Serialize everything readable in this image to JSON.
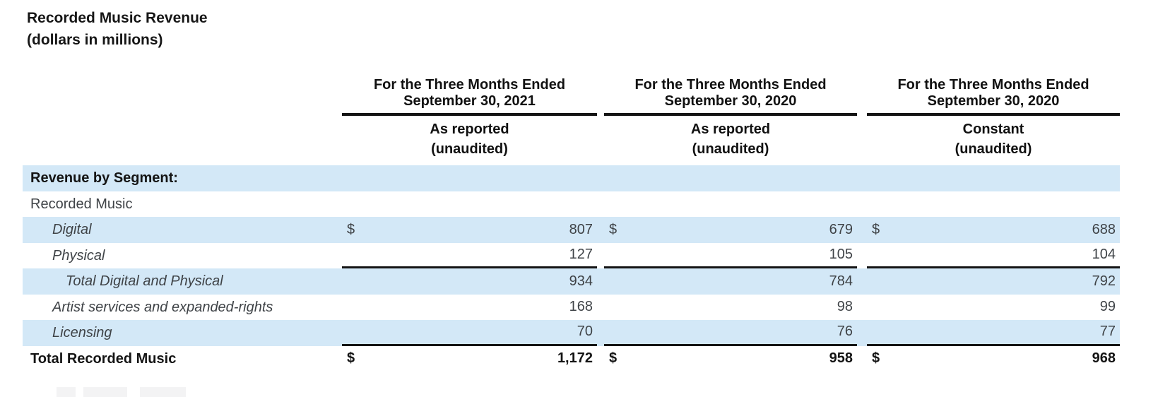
{
  "title": "Recorded Music Revenue",
  "subtitle": "(dollars in millions)",
  "table": {
    "column_groups": [
      {
        "period": "For the Three Months Ended",
        "date": "September 30, 2021",
        "basis": "As reported",
        "audit_note": "(unaudited)"
      },
      {
        "period": "For the Three Months Ended",
        "date": "September 30, 2020",
        "basis": "As reported",
        "audit_note": "(unaudited)"
      },
      {
        "period": "For the Three Months Ended",
        "date": "September 30, 2020",
        "basis": "Constant",
        "audit_note": "(unaudited)"
      }
    ],
    "section_header": "Revenue by Segment:",
    "rows": [
      {
        "label": "Recorded Music"
      },
      {
        "label": "Digital",
        "currency": "$",
        "values": [
          "807",
          "679",
          "688"
        ]
      },
      {
        "label": "Physical",
        "values": [
          "127",
          "105",
          "104"
        ]
      },
      {
        "label": "Total Digital and Physical",
        "values": [
          "934",
          "784",
          "792"
        ]
      },
      {
        "label": "Artist services and expanded-rights",
        "values": [
          "168",
          "98",
          "99"
        ]
      },
      {
        "label": "Licensing",
        "values": [
          "70",
          "76",
          "77"
        ]
      },
      {
        "label": "Total Recorded Music",
        "currency": "$",
        "values": [
          "1,172",
          "958",
          "968"
        ]
      }
    ]
  },
  "colors": {
    "row_highlight": "#d3e8f7",
    "rule": "#141414",
    "text_primary": "#141414",
    "text_secondary": "#3f4347"
  }
}
